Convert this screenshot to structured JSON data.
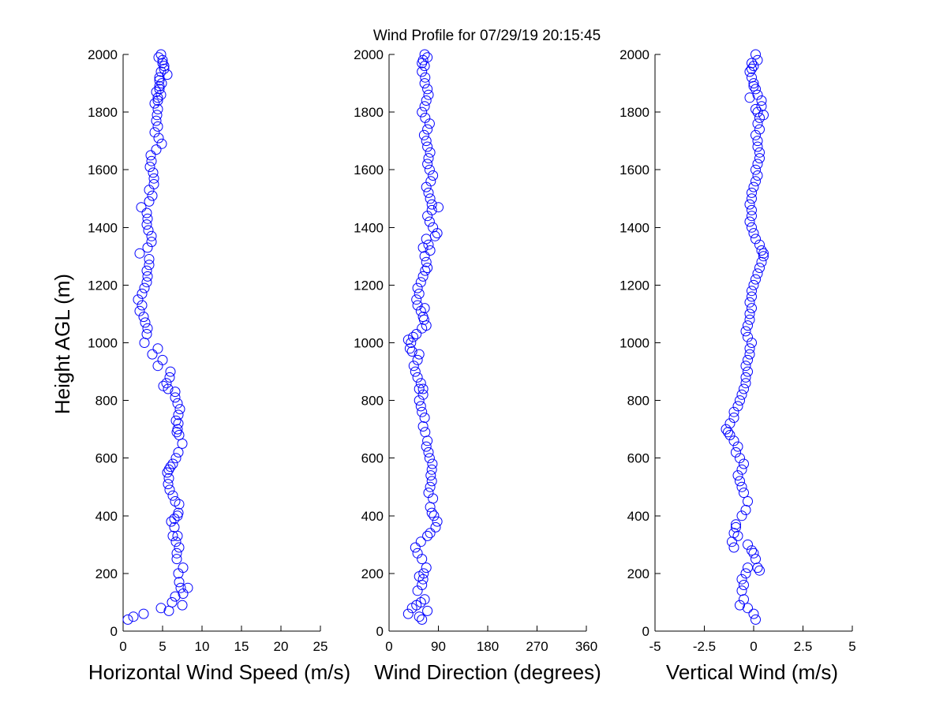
{
  "title": "Wind Profile for  07/29/19 20:15:45",
  "ylabel": "Height AGL (m)",
  "chart_data": [
    {
      "type": "scatter",
      "name": "horizontal-wind-speed",
      "xlabel": "Horizontal Wind Speed (m/s)",
      "ylabel": "Height AGL (m)",
      "xlim": [
        0,
        25
      ],
      "ylim": [
        0,
        2000
      ],
      "xticks": [
        "0",
        "5",
        "10",
        "15",
        "20",
        "25"
      ],
      "yticks": [
        "0",
        "200",
        "400",
        "600",
        "800",
        "1000",
        "1200",
        "1400",
        "1600",
        "1800",
        "2000"
      ],
      "marker": "open-circle",
      "color": "#0000ff",
      "x": [
        0.6,
        1.3,
        2.6,
        4.8,
        5.8,
        6.2,
        7.5,
        6.6,
        7.6,
        7.3,
        7.1,
        8.2,
        7.0,
        7.6,
        6.8,
        6.8,
        7.1,
        6.7,
        6.9,
        6.5,
        6.3,
        6.1,
        6.5,
        6.9,
        7.0,
        7.1,
        6.6,
        6.3,
        5.9,
        5.7,
        5.8,
        5.6,
        5.8,
        6.0,
        6.3,
        6.7,
        7.0,
        7.5,
        7.1,
        6.8,
        6.9,
        7.0,
        6.7,
        7.0,
        7.2,
        6.9,
        6.6,
        6.6,
        5.7,
        5.5,
        5.1,
        5.9,
        6.0,
        4.4,
        5.0,
        3.7,
        4.4,
        2.7,
        3.0,
        3.1,
        2.8,
        2.6,
        2.1,
        2.4,
        1.9,
        2.4,
        2.7,
        3.0,
        3.1,
        3.0,
        3.3,
        3.3,
        2.1,
        3.1,
        3.6,
        3.6,
        3.2,
        3.0,
        3.1,
        3.0,
        2.3,
        3.3,
        3.7,
        3.3,
        3.9,
        3.9,
        3.8,
        3.4,
        3.6,
        3.5,
        4.2,
        4.9,
        4.5,
        4.0,
        4.4,
        4.2,
        4.3,
        4.4,
        4.0,
        4.4,
        4.2,
        4.6,
        4.6,
        5.6,
        5.2,
        5.0,
        4.5,
        4.8,
        5.0,
        5.2,
        4.8,
        4.6,
        4.9,
        4.6,
        4.8,
        4.4
      ],
      "y": [
        40,
        50,
        60,
        80,
        70,
        100,
        90,
        120,
        130,
        150,
        170,
        150,
        200,
        220,
        250,
        270,
        290,
        310,
        330,
        360,
        330,
        380,
        390,
        400,
        410,
        440,
        450,
        470,
        490,
        510,
        530,
        550,
        560,
        570,
        580,
        600,
        620,
        650,
        680,
        690,
        700,
        720,
        730,
        750,
        770,
        790,
        810,
        830,
        840,
        860,
        850,
        880,
        900,
        920,
        940,
        960,
        980,
        1000,
        1030,
        1050,
        1070,
        1090,
        1110,
        1130,
        1150,
        1170,
        1190,
        1210,
        1230,
        1250,
        1270,
        1290,
        1310,
        1330,
        1350,
        1370,
        1390,
        1410,
        1430,
        1450,
        1470,
        1490,
        1510,
        1530,
        1550,
        1570,
        1590,
        1610,
        1630,
        1650,
        1670,
        1690,
        1710,
        1730,
        1750,
        1770,
        1790,
        1810,
        1830,
        1850,
        1870,
        1890,
        1910,
        1930,
        1950,
        1970,
        1990,
        2000,
        1980,
        1960,
        1940,
        1920,
        1900,
        1880,
        1860,
        1840
      ]
    },
    {
      "type": "scatter",
      "name": "wind-direction",
      "xlabel": "Wind Direction (degrees)",
      "ylabel": "",
      "xlim": [
        0,
        360
      ],
      "ylim": [
        0,
        2000
      ],
      "xticks": [
        "0",
        "90",
        "180",
        "270",
        "360"
      ],
      "yticks": [
        "0",
        "200",
        "400",
        "600",
        "800",
        "1000",
        "1200",
        "1400",
        "1600",
        "1800",
        "2000"
      ],
      "marker": "open-circle",
      "color": "#0000ff",
      "x": [
        55,
        35,
        42,
        50,
        60,
        70,
        58,
        65,
        52,
        60,
        62,
        55,
        63,
        68,
        60,
        52,
        48,
        58,
        70,
        75,
        85,
        88,
        82,
        78,
        75,
        80,
        72,
        75,
        78,
        76,
        78,
        79,
        74,
        72,
        68,
        70,
        66,
        62,
        65,
        60,
        58,
        55,
        62,
        55,
        58,
        52,
        48,
        62,
        52,
        55,
        45,
        42,
        38,
        40,
        35,
        44,
        50,
        60,
        68,
        64,
        62,
        58,
        65,
        52,
        50,
        55,
        52,
        58,
        62,
        66,
        70,
        68,
        65,
        62,
        75,
        72,
        68,
        84,
        88,
        80,
        74,
        70,
        78,
        90,
        78,
        75,
        72,
        68,
        76,
        80,
        74,
        70,
        72,
        75,
        70,
        68,
        64,
        70,
        74,
        66,
        60,
        65,
        68,
        72,
        70,
        65,
        66,
        60,
        65,
        62,
        70,
        65,
        60
      ],
      "y": [
        50,
        60,
        80,
        90,
        40,
        70,
        100,
        110,
        140,
        160,
        180,
        190,
        200,
        220,
        250,
        270,
        290,
        310,
        330,
        340,
        360,
        380,
        400,
        410,
        430,
        460,
        480,
        500,
        520,
        540,
        560,
        580,
        600,
        620,
        640,
        660,
        690,
        710,
        740,
        760,
        780,
        800,
        820,
        840,
        860,
        880,
        900,
        840,
        940,
        960,
        920,
        970,
        980,
        1000,
        1010,
        1020,
        1030,
        1050,
        1060,
        1080,
        1090,
        1110,
        1120,
        1130,
        1150,
        1170,
        1190,
        1210,
        1230,
        1250,
        1260,
        1280,
        1300,
        1330,
        1320,
        1340,
        1360,
        1370,
        1380,
        1400,
        1420,
        1440,
        1460,
        1470,
        1480,
        1500,
        1520,
        1540,
        1560,
        1580,
        1600,
        1620,
        1640,
        1660,
        1680,
        1700,
        1720,
        1740,
        1760,
        1780,
        1800,
        1820,
        1840,
        1860,
        1880,
        1900,
        1920,
        1940,
        1960,
        1980,
        1990,
        2000,
        1970
      ]
    },
    {
      "type": "scatter",
      "name": "vertical-wind",
      "xlabel": "Vertical Wind (m/s)",
      "ylabel": "",
      "xlim": [
        -5,
        5
      ],
      "ylim": [
        0,
        2000
      ],
      "xticks": [
        "-5",
        "-2.5",
        "0",
        "2.5",
        "5"
      ],
      "yticks": [
        "0",
        "200",
        "400",
        "600",
        "800",
        "1000",
        "1200",
        "1400",
        "1600",
        "1800",
        "2000"
      ],
      "marker": "open-circle",
      "color": "#0000ff",
      "x": [
        0.1,
        0.0,
        -0.3,
        -0.7,
        -0.5,
        -0.6,
        -0.5,
        -0.6,
        -0.4,
        -0.3,
        0.2,
        0.3,
        0.1,
        0.0,
        -0.1,
        -0.3,
        -1.0,
        -0.9,
        -1.1,
        -0.8,
        -1.0,
        -0.9,
        -0.6,
        -0.4,
        -0.3,
        -0.5,
        -0.6,
        -0.7,
        -0.8,
        -0.6,
        -0.5,
        -0.7,
        -0.9,
        -0.8,
        -1.0,
        -1.2,
        -1.3,
        -1.4,
        -1.2,
        -1.0,
        -1.0,
        -0.8,
        -0.7,
        -0.6,
        -0.5,
        -0.4,
        -0.4,
        -0.3,
        -0.4,
        -0.3,
        -0.2,
        -0.2,
        -0.1,
        -0.3,
        -0.4,
        -0.3,
        -0.2,
        -0.2,
        -0.1,
        -0.2,
        -0.1,
        -0.1,
        0.0,
        0.1,
        0.2,
        0.3,
        0.4,
        0.5,
        0.5,
        0.4,
        0.3,
        0.1,
        0.0,
        -0.1,
        -0.2,
        -0.1,
        -0.1,
        -0.2,
        -0.1,
        -0.1,
        0.0,
        0.1,
        0.2,
        0.1,
        0.2,
        0.3,
        0.3,
        0.2,
        0.2,
        0.1,
        0.3,
        0.2,
        0.3,
        0.2,
        0.1,
        0.4,
        0.5,
        0.4,
        0.2,
        0.1,
        0.0,
        -0.1,
        -0.2,
        -0.1,
        0.0,
        0.2,
        0.1,
        -0.1,
        0.0,
        -0.2
      ],
      "y": [
        40,
        60,
        80,
        90,
        110,
        140,
        160,
        180,
        200,
        220,
        220,
        210,
        250,
        270,
        280,
        300,
        340,
        370,
        310,
        330,
        290,
        360,
        400,
        420,
        450,
        480,
        500,
        520,
        540,
        560,
        580,
        600,
        620,
        640,
        660,
        680,
        690,
        700,
        720,
        740,
        760,
        780,
        800,
        820,
        840,
        860,
        880,
        900,
        920,
        940,
        960,
        980,
        1000,
        1020,
        1040,
        1060,
        1080,
        1100,
        1120,
        1140,
        1160,
        1180,
        1200,
        1220,
        1240,
        1260,
        1280,
        1300,
        1310,
        1320,
        1340,
        1360,
        1380,
        1400,
        1420,
        1440,
        1460,
        1480,
        1500,
        1520,
        1540,
        1560,
        1580,
        1600,
        1620,
        1640,
        1660,
        1680,
        1700,
        1720,
        1740,
        1760,
        1780,
        1800,
        1810,
        1820,
        1790,
        1840,
        1860,
        1880,
        1900,
        1920,
        1940,
        1950,
        1960,
        1980,
        2000,
        1970,
        1890,
        1850
      ]
    }
  ]
}
